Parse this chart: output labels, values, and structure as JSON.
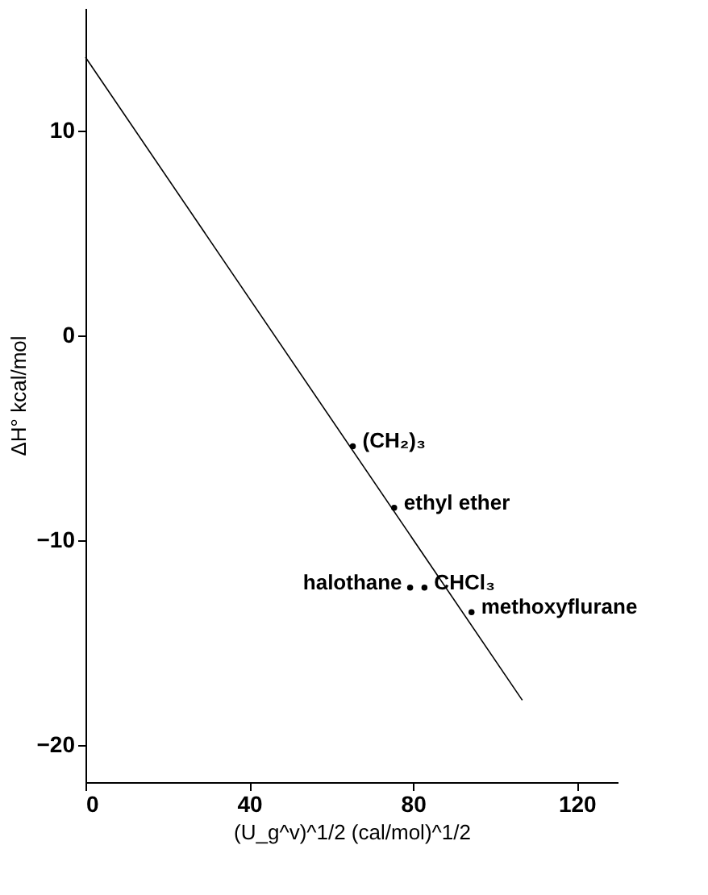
{
  "chart_data": {
    "type": "scatter",
    "xlabel": "(U_g^v)^1/2 (cal/mol)^1/2",
    "ylabel": "ΔH° kcal/mol",
    "xlim": [
      0,
      130
    ],
    "ylim": [
      -21.8,
      16
    ],
    "xticks": [
      0,
      40,
      80,
      120
    ],
    "yticks": [
      -20,
      -10,
      0,
      10
    ],
    "grid": false,
    "series": [
      {
        "color": "#000000",
        "marker": "circle",
        "x": [
          65.3,
          75.4,
          79.3,
          82.8,
          94.3
        ],
        "values": [
          -5.4,
          -8.4,
          -12.3,
          -12.3,
          -13.5
        ]
      },
      {
        "type": "line",
        "color": "#000000",
        "line_style": "solid",
        "x": [
          0,
          106.7
        ],
        "values": [
          13.6,
          -17.8
        ]
      }
    ],
    "annotations": [
      {
        "text": "(CH₂)₃",
        "x": 65.3,
        "y": -5.4
      },
      {
        "text": "ethyl ether",
        "x": 75.4,
        "y": -8.4
      },
      {
        "text": "halothane",
        "x": 79.3,
        "y": -12.3
      },
      {
        "text": "CHCl₃",
        "x": 82.8,
        "y": -12.3
      },
      {
        "text": "methoxyflurane",
        "x": 94.3,
        "y": -13.5
      }
    ]
  }
}
